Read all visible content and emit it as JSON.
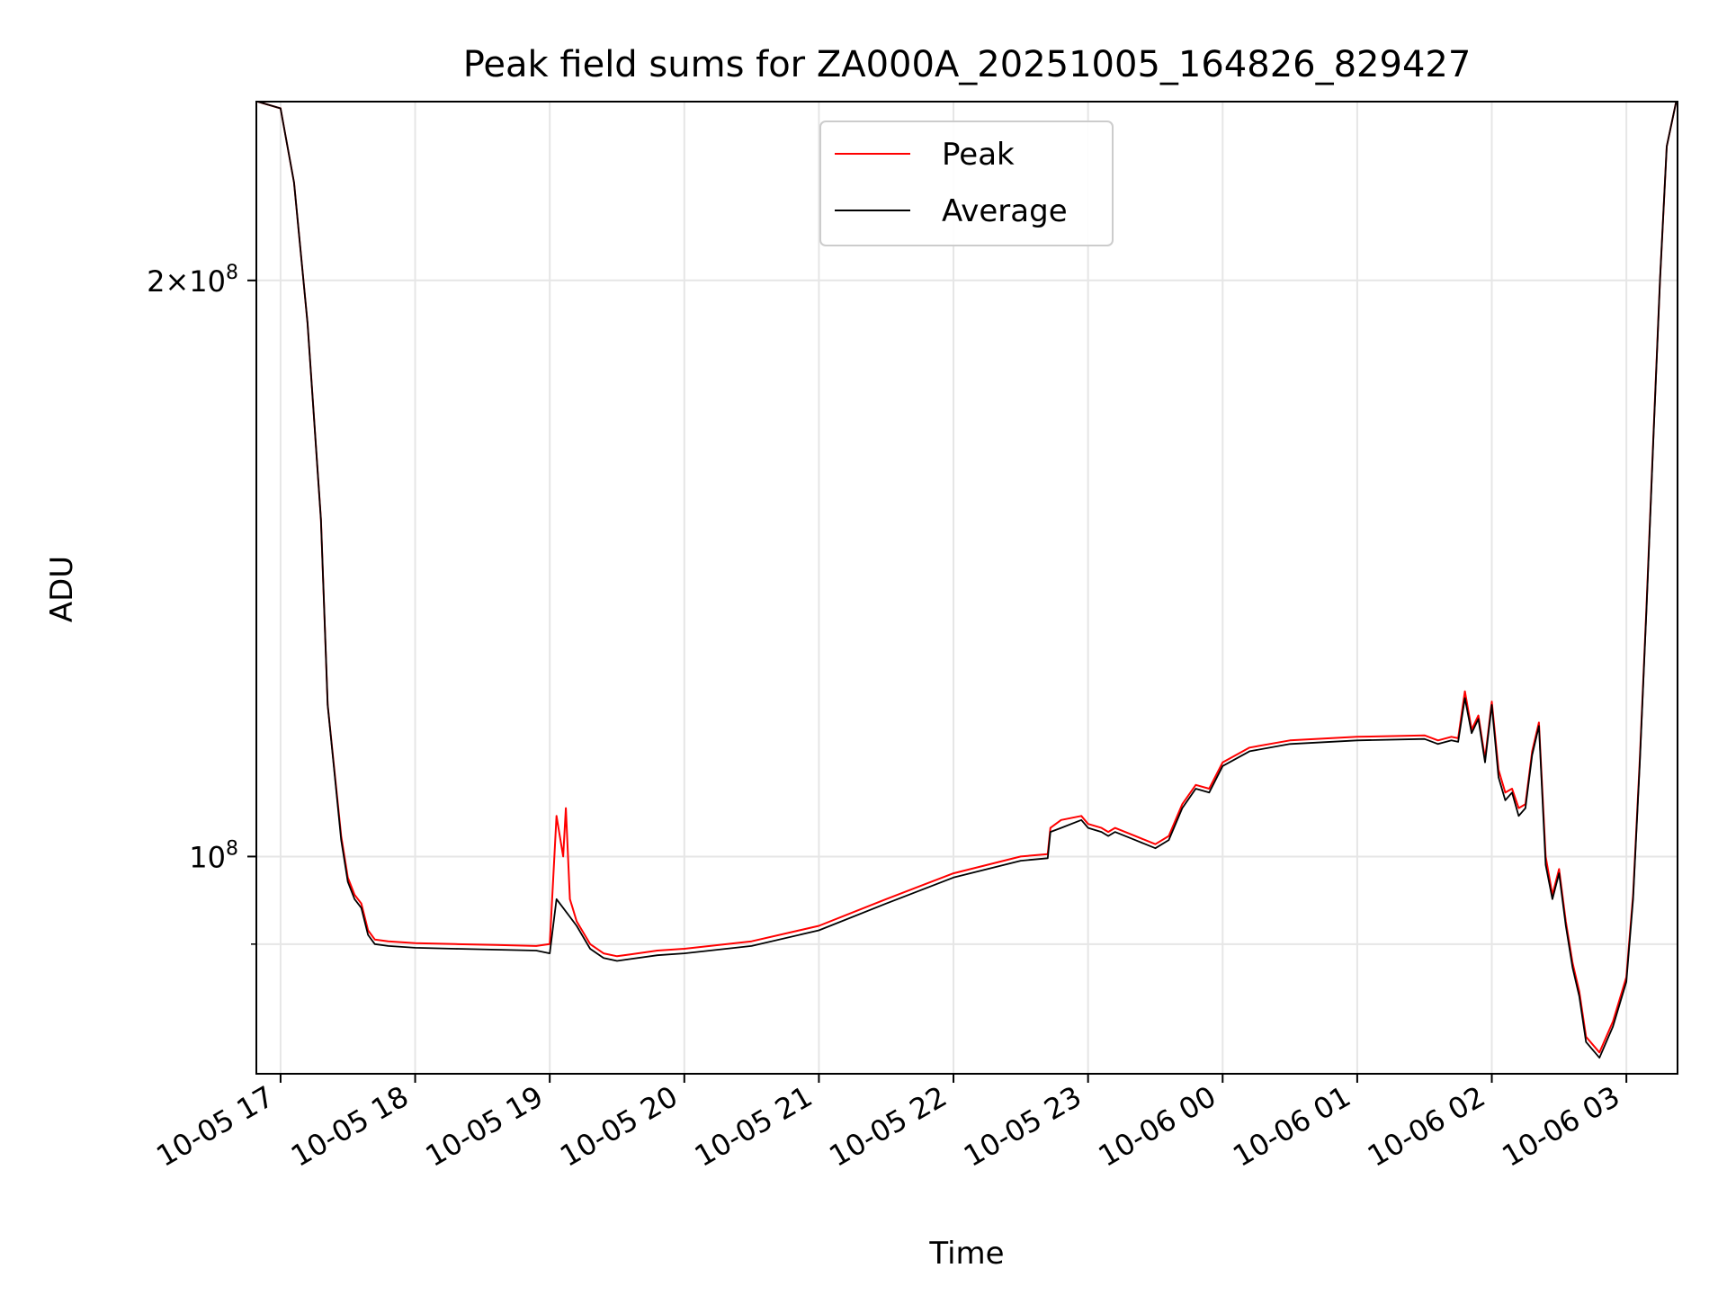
{
  "chart_data": {
    "type": "line",
    "title": "Peak field sums for ZA000A_20251005_164826_829427",
    "xlabel": "Time",
    "ylabel": "ADU",
    "y_scale": "log",
    "ylim": [
      77000000,
      248000000
    ],
    "xlim_hours": [
      -0.18,
      10.38
    ],
    "grid": true,
    "x_tick_hours": [
      0,
      1,
      2,
      3,
      4,
      5,
      6,
      7,
      8,
      9,
      10
    ],
    "x_ticks": [
      "10-05 17",
      "10-05 18",
      "10-05 19",
      "10-05 20",
      "10-05 21",
      "10-05 22",
      "10-05 23",
      "10-06 00",
      "10-06 01",
      "10-06 02",
      "10-06 03"
    ],
    "y_major_ticks": [
      {
        "value": 200000000,
        "mantissa": "2",
        "exponent": "8"
      },
      {
        "value": 100000000,
        "mantissa": "",
        "exponent": "8"
      }
    ],
    "y_minor_ticks": [
      90000000
    ],
    "legend": {
      "position": "top-center",
      "entries": [
        "Peak",
        "Average"
      ]
    },
    "series": [
      {
        "name": "Average",
        "color": "#000000",
        "x_hours": [
          -0.17,
          0.0,
          0.1,
          0.2,
          0.3,
          0.35,
          0.45,
          0.5,
          0.55,
          0.6,
          0.65,
          0.7,
          0.8,
          0.9,
          1.0,
          1.3,
          1.6,
          1.9,
          2.0,
          2.05,
          2.1,
          2.15,
          2.2,
          2.3,
          2.4,
          2.5,
          2.6,
          2.8,
          3.0,
          3.5,
          4.0,
          4.5,
          5.0,
          5.5,
          5.7,
          5.72,
          5.8,
          5.95,
          6.0,
          6.1,
          6.15,
          6.2,
          6.35,
          6.5,
          6.6,
          6.7,
          6.8,
          6.9,
          7.0,
          7.2,
          7.5,
          8.0,
          8.5,
          8.6,
          8.7,
          8.75,
          8.8,
          8.85,
          8.9,
          8.95,
          9.0,
          9.05,
          9.1,
          9.15,
          9.2,
          9.25,
          9.3,
          9.35,
          9.4,
          9.45,
          9.5,
          9.55,
          9.6,
          9.65,
          9.7,
          9.8,
          9.9,
          10.0,
          10.05,
          10.1,
          10.15,
          10.2,
          10.25,
          10.3,
          10.37
        ],
        "values": [
          248000000,
          246000000,
          225000000,
          190000000,
          150000000,
          120000000,
          102000000,
          97000000,
          95000000,
          94000000,
          91000000,
          90000000,
          89800000,
          89700000,
          89600000,
          89500000,
          89400000,
          89300000,
          89000000,
          95000000,
          94000000,
          93000000,
          92000000,
          89500000,
          88500000,
          88200000,
          88400000,
          88800000,
          89000000,
          89800000,
          91500000,
          94500000,
          97500000,
          99500000,
          99800000,
          103000000,
          103500000,
          104500000,
          103500000,
          103000000,
          102500000,
          103000000,
          102000000,
          101000000,
          102000000,
          106000000,
          108500000,
          108000000,
          111500000,
          113500000,
          114500000,
          115000000,
          115200000,
          114500000,
          115000000,
          114800000,
          121000000,
          116000000,
          118000000,
          112000000,
          120000000,
          110000000,
          107000000,
          108000000,
          105000000,
          106000000,
          113000000,
          117000000,
          99000000,
          95000000,
          98000000,
          92000000,
          87500000,
          84500000,
          80000000,
          78500000,
          81500000,
          86000000,
          95000000,
          112000000,
          135000000,
          165000000,
          200000000,
          235000000,
          248000000
        ]
      },
      {
        "name": "Peak",
        "color": "#ff0000",
        "x_hours": [
          -0.17,
          0.0,
          0.1,
          0.2,
          0.3,
          0.35,
          0.45,
          0.5,
          0.55,
          0.6,
          0.65,
          0.7,
          0.8,
          0.9,
          1.0,
          1.3,
          1.6,
          1.9,
          2.0,
          2.05,
          2.1,
          2.12,
          2.15,
          2.17,
          2.2,
          2.3,
          2.4,
          2.5,
          2.6,
          2.8,
          3.0,
          3.5,
          4.0,
          4.5,
          5.0,
          5.5,
          5.7,
          5.72,
          5.8,
          5.95,
          6.0,
          6.1,
          6.15,
          6.2,
          6.35,
          6.5,
          6.6,
          6.7,
          6.8,
          6.9,
          7.0,
          7.2,
          7.5,
          8.0,
          8.5,
          8.6,
          8.7,
          8.75,
          8.8,
          8.85,
          8.9,
          8.95,
          9.0,
          9.05,
          9.1,
          9.15,
          9.2,
          9.25,
          9.3,
          9.35,
          9.4,
          9.45,
          9.5,
          9.55,
          9.6,
          9.65,
          9.7,
          9.8,
          9.9,
          10.0,
          10.05,
          10.1,
          10.15,
          10.2,
          10.25,
          10.3,
          10.37
        ],
        "values": [
          248000000,
          246000000,
          225000000,
          190000000,
          150000000,
          120000000,
          102500000,
          97500000,
          95500000,
          94500000,
          91500000,
          90500000,
          90300000,
          90200000,
          90100000,
          90000000,
          89900000,
          89800000,
          90000000,
          105000000,
          100000000,
          106000000,
          95000000,
          94000000,
          92500000,
          90000000,
          89000000,
          88700000,
          88900000,
          89300000,
          89500000,
          90300000,
          92000000,
          95000000,
          98000000,
          100000000,
          100300000,
          103500000,
          104500000,
          105000000,
          104000000,
          103500000,
          103000000,
          103500000,
          102500000,
          101500000,
          102500000,
          106500000,
          109000000,
          108500000,
          112000000,
          114000000,
          115000000,
          115500000,
          115700000,
          115000000,
          115500000,
          115300000,
          122000000,
          116500000,
          118500000,
          112500000,
          120500000,
          111000000,
          108000000,
          108500000,
          106000000,
          106500000,
          113500000,
          117500000,
          100000000,
          95500000,
          98500000,
          92500000,
          88000000,
          85000000,
          80500000,
          79000000,
          82000000,
          86500000,
          95500000,
          112500000,
          135500000,
          165500000,
          200000000,
          235000000,
          248000000
        ]
      }
    ]
  }
}
